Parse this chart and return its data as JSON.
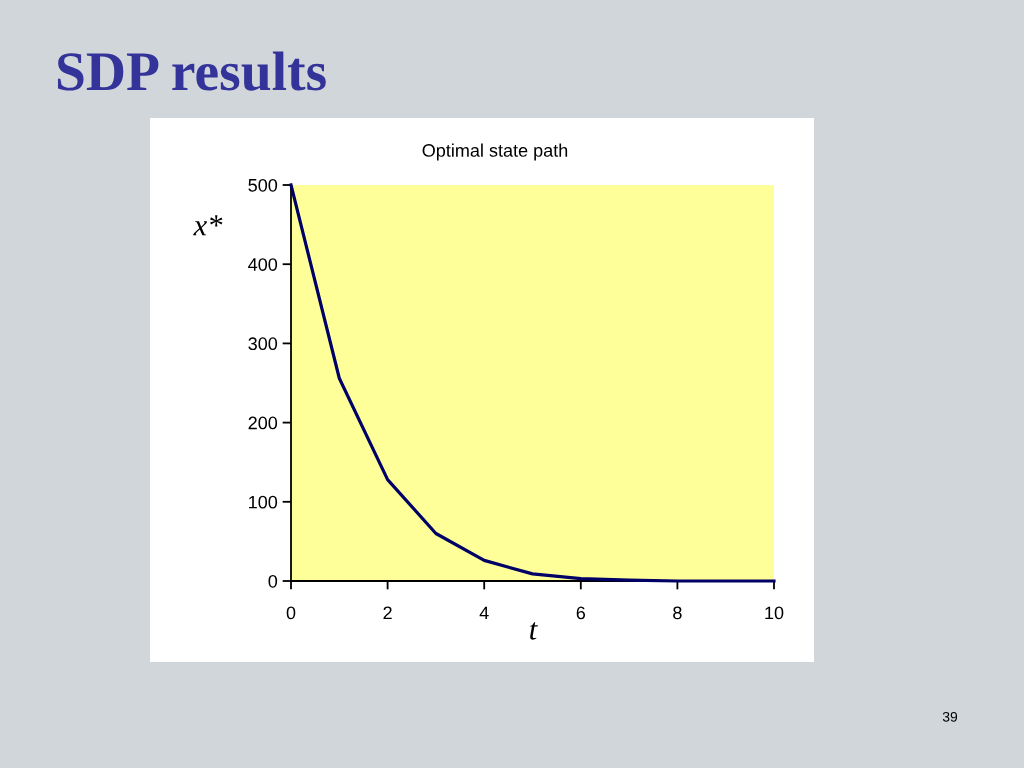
{
  "chart_data": {
    "type": "line",
    "title": "SDP results",
    "subtitle": "Optimal state path",
    "xlabel": "t",
    "ylabel": "x*",
    "annotations": [
      "39"
    ],
    "x": [
      0,
      1,
      2,
      3,
      4,
      5,
      6,
      7,
      8,
      9,
      10
    ],
    "series": [
      {
        "color": "#000066",
        "values": [
          500,
          256,
          128,
          60,
          26,
          9,
          3,
          1,
          0,
          0,
          0
        ]
      }
    ],
    "xlim": [
      0,
      10
    ],
    "xticks": [
      0,
      2,
      4,
      6,
      8,
      10
    ],
    "ylim": [
      0,
      500
    ],
    "yticks": [
      0,
      100,
      200,
      300,
      400,
      500
    ]
  }
}
